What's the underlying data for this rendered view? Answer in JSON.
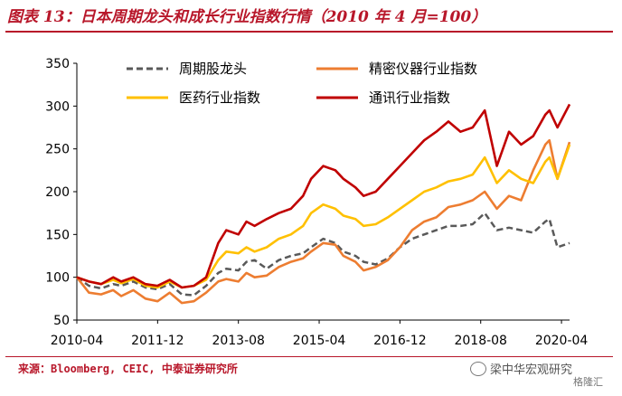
{
  "figure": {
    "title": "图表 13：日本周期龙头和成长行业指数行情（2010 年 4 月=100）",
    "source": "来源：Bloomberg, CEIC, 中泰证券研究所",
    "watermark": "梁中华宏观研究",
    "watermark_logo": "格隆汇"
  },
  "chart_data": {
    "type": "line",
    "title": "日本周期龙头和成长行业指数行情（2010 年 4 月=100）",
    "xlabel": "",
    "ylabel": "",
    "ylim": [
      50,
      350
    ],
    "yticks": [
      50,
      100,
      150,
      200,
      250,
      300,
      350
    ],
    "xlim": [
      "2010-04",
      "2020-06"
    ],
    "xticks": [
      "2010-04",
      "2011-12",
      "2013-08",
      "2015-04",
      "2016-12",
      "2018-08",
      "2020-04"
    ],
    "grid": false,
    "legend_position": "top-left",
    "series": [
      {
        "name": "周期股龙头",
        "color": "#595959",
        "style": "dashed",
        "points": [
          [
            "2010-04",
            100
          ],
          [
            "2010-07",
            90
          ],
          [
            "2010-10",
            87
          ],
          [
            "2011-01",
            92
          ],
          [
            "2011-03",
            90
          ],
          [
            "2011-06",
            95
          ],
          [
            "2011-09",
            88
          ],
          [
            "2011-12",
            86
          ],
          [
            "2012-03",
            92
          ],
          [
            "2012-06",
            80
          ],
          [
            "2012-09",
            79
          ],
          [
            "2012-12",
            90
          ],
          [
            "2013-03",
            105
          ],
          [
            "2013-05",
            110
          ],
          [
            "2013-08",
            108
          ],
          [
            "2013-10",
            118
          ],
          [
            "2013-12",
            120
          ],
          [
            "2014-03",
            110
          ],
          [
            "2014-06",
            120
          ],
          [
            "2014-09",
            125
          ],
          [
            "2014-12",
            128
          ],
          [
            "2015-02",
            135
          ],
          [
            "2015-05",
            145
          ],
          [
            "2015-08",
            140
          ],
          [
            "2015-10",
            130
          ],
          [
            "2016-01",
            125
          ],
          [
            "2016-03",
            118
          ],
          [
            "2016-06",
            115
          ],
          [
            "2016-09",
            122
          ],
          [
            "2016-12",
            135
          ],
          [
            "2017-03",
            145
          ],
          [
            "2017-06",
            150
          ],
          [
            "2017-09",
            155
          ],
          [
            "2017-12",
            160
          ],
          [
            "2018-03",
            160
          ],
          [
            "2018-06",
            162
          ],
          [
            "2018-09",
            175
          ],
          [
            "2018-12",
            155
          ],
          [
            "2019-03",
            158
          ],
          [
            "2019-06",
            155
          ],
          [
            "2019-09",
            152
          ],
          [
            "2019-12",
            165
          ],
          [
            "2020-01",
            168
          ],
          [
            "2020-03",
            135
          ],
          [
            "2020-06",
            140
          ]
        ]
      },
      {
        "name": "精密仪器行业指数",
        "color": "#ed7d31",
        "style": "solid",
        "points": [
          [
            "2010-04",
            100
          ],
          [
            "2010-07",
            82
          ],
          [
            "2010-10",
            80
          ],
          [
            "2011-01",
            85
          ],
          [
            "2011-03",
            78
          ],
          [
            "2011-06",
            85
          ],
          [
            "2011-09",
            75
          ],
          [
            "2011-12",
            72
          ],
          [
            "2012-03",
            82
          ],
          [
            "2012-06",
            70
          ],
          [
            "2012-09",
            72
          ],
          [
            "2012-12",
            82
          ],
          [
            "2013-03",
            95
          ],
          [
            "2013-05",
            98
          ],
          [
            "2013-08",
            95
          ],
          [
            "2013-10",
            105
          ],
          [
            "2013-12",
            100
          ],
          [
            "2014-03",
            102
          ],
          [
            "2014-06",
            112
          ],
          [
            "2014-09",
            118
          ],
          [
            "2014-12",
            122
          ],
          [
            "2015-02",
            130
          ],
          [
            "2015-05",
            140
          ],
          [
            "2015-08",
            138
          ],
          [
            "2015-10",
            125
          ],
          [
            "2016-01",
            118
          ],
          [
            "2016-03",
            108
          ],
          [
            "2016-06",
            112
          ],
          [
            "2016-09",
            120
          ],
          [
            "2016-12",
            135
          ],
          [
            "2017-03",
            155
          ],
          [
            "2017-06",
            165
          ],
          [
            "2017-09",
            170
          ],
          [
            "2017-12",
            182
          ],
          [
            "2018-03",
            185
          ],
          [
            "2018-06",
            190
          ],
          [
            "2018-09",
            200
          ],
          [
            "2018-12",
            180
          ],
          [
            "2019-03",
            195
          ],
          [
            "2019-06",
            190
          ],
          [
            "2019-09",
            225
          ],
          [
            "2019-12",
            255
          ],
          [
            "2020-01",
            260
          ],
          [
            "2020-03",
            215
          ],
          [
            "2020-06",
            258
          ]
        ]
      },
      {
        "name": "医药行业指数",
        "color": "#ffc000",
        "style": "solid",
        "points": [
          [
            "2010-04",
            100
          ],
          [
            "2010-07",
            95
          ],
          [
            "2010-10",
            92
          ],
          [
            "2011-01",
            97
          ],
          [
            "2011-03",
            93
          ],
          [
            "2011-06",
            98
          ],
          [
            "2011-09",
            90
          ],
          [
            "2011-12",
            88
          ],
          [
            "2012-03",
            95
          ],
          [
            "2012-06",
            88
          ],
          [
            "2012-09",
            90
          ],
          [
            "2012-12",
            97
          ],
          [
            "2013-03",
            120
          ],
          [
            "2013-05",
            130
          ],
          [
            "2013-08",
            128
          ],
          [
            "2013-10",
            135
          ],
          [
            "2013-12",
            130
          ],
          [
            "2014-03",
            135
          ],
          [
            "2014-06",
            145
          ],
          [
            "2014-09",
            150
          ],
          [
            "2014-12",
            160
          ],
          [
            "2015-02",
            175
          ],
          [
            "2015-05",
            185
          ],
          [
            "2015-08",
            180
          ],
          [
            "2015-10",
            172
          ],
          [
            "2016-01",
            168
          ],
          [
            "2016-03",
            160
          ],
          [
            "2016-06",
            162
          ],
          [
            "2016-09",
            170
          ],
          [
            "2016-12",
            180
          ],
          [
            "2017-03",
            190
          ],
          [
            "2017-06",
            200
          ],
          [
            "2017-09",
            205
          ],
          [
            "2017-12",
            212
          ],
          [
            "2018-03",
            215
          ],
          [
            "2018-06",
            220
          ],
          [
            "2018-09",
            240
          ],
          [
            "2018-12",
            210
          ],
          [
            "2019-03",
            225
          ],
          [
            "2019-06",
            215
          ],
          [
            "2019-09",
            210
          ],
          [
            "2019-12",
            235
          ],
          [
            "2020-01",
            240
          ],
          [
            "2020-03",
            215
          ],
          [
            "2020-06",
            255
          ]
        ]
      },
      {
        "name": "通讯行业指数",
        "color": "#c00000",
        "style": "solid",
        "points": [
          [
            "2010-04",
            100
          ],
          [
            "2010-07",
            95
          ],
          [
            "2010-10",
            92
          ],
          [
            "2011-01",
            100
          ],
          [
            "2011-03",
            95
          ],
          [
            "2011-06",
            100
          ],
          [
            "2011-09",
            92
          ],
          [
            "2011-12",
            90
          ],
          [
            "2012-03",
            97
          ],
          [
            "2012-06",
            88
          ],
          [
            "2012-09",
            90
          ],
          [
            "2012-12",
            100
          ],
          [
            "2013-03",
            140
          ],
          [
            "2013-05",
            155
          ],
          [
            "2013-08",
            150
          ],
          [
            "2013-10",
            165
          ],
          [
            "2013-12",
            160
          ],
          [
            "2014-03",
            168
          ],
          [
            "2014-06",
            175
          ],
          [
            "2014-09",
            180
          ],
          [
            "2014-12",
            195
          ],
          [
            "2015-02",
            215
          ],
          [
            "2015-05",
            230
          ],
          [
            "2015-08",
            225
          ],
          [
            "2015-10",
            215
          ],
          [
            "2016-01",
            205
          ],
          [
            "2016-03",
            195
          ],
          [
            "2016-06",
            200
          ],
          [
            "2016-09",
            215
          ],
          [
            "2016-12",
            230
          ],
          [
            "2017-03",
            245
          ],
          [
            "2017-06",
            260
          ],
          [
            "2017-09",
            270
          ],
          [
            "2017-12",
            282
          ],
          [
            "2018-03",
            270
          ],
          [
            "2018-06",
            275
          ],
          [
            "2018-09",
            295
          ],
          [
            "2018-12",
            230
          ],
          [
            "2019-03",
            270
          ],
          [
            "2019-06",
            255
          ],
          [
            "2019-09",
            265
          ],
          [
            "2019-12",
            290
          ],
          [
            "2020-01",
            295
          ],
          [
            "2020-03",
            275
          ],
          [
            "2020-06",
            302
          ]
        ]
      }
    ]
  }
}
